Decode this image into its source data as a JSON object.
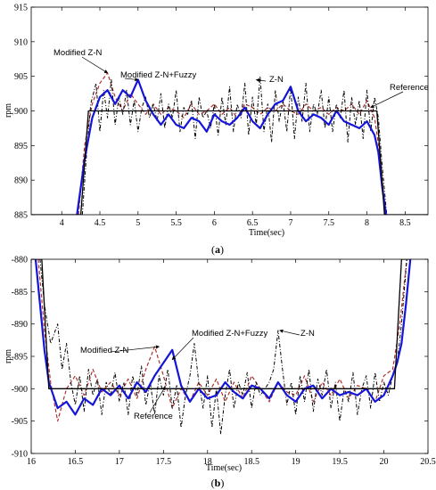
{
  "chart_data": [
    {
      "id": "a",
      "type": "line",
      "panel_label": "a",
      "xlabel": "Time(sec)",
      "ylabel": "rpm",
      "xlim": [
        3.6,
        8.8
      ],
      "ylim": [
        885,
        915
      ],
      "xticks": [
        "4",
        "4.5",
        "5",
        "5.5",
        "6",
        "6.5",
        "7",
        "7.5",
        "8",
        "8.5"
      ],
      "yticks": [
        "885",
        "890",
        "895",
        "900",
        "905",
        "910",
        "915"
      ],
      "series": [
        {
          "name": "Reference",
          "color": "#000000",
          "style": "solid",
          "x": [
            3.6,
            4.25,
            4.35,
            8.13,
            8.23,
            8.8
          ],
          "y": [
            885,
            885,
            900,
            900,
            885,
            885
          ]
        },
        {
          "name": "Modified Z-N+Fuzzy",
          "color": "#1515d8",
          "style": "solid",
          "x": [
            4.2,
            4.3,
            4.4,
            4.5,
            4.6,
            4.7,
            4.8,
            4.9,
            5.0,
            5.1,
            5.2,
            5.3,
            5.4,
            5.5,
            5.6,
            5.7,
            5.8,
            5.9,
            6.0,
            6.1,
            6.2,
            6.3,
            6.4,
            6.5,
            6.6,
            6.7,
            6.8,
            6.9,
            7.0,
            7.1,
            7.2,
            7.3,
            7.4,
            7.5,
            7.6,
            7.7,
            7.8,
            7.9,
            8.0,
            8.1,
            8.15,
            8.2,
            8.25
          ],
          "y": [
            885,
            893,
            899,
            902,
            903,
            901,
            903,
            902,
            904.5,
            901.5,
            899.5,
            898,
            899.5,
            898,
            897.5,
            899,
            898.5,
            897,
            899.5,
            898.5,
            898,
            899,
            900.5,
            898.5,
            897.5,
            899.5,
            901,
            901.5,
            903.5,
            900,
            898.5,
            899.5,
            899,
            898,
            900,
            898.5,
            898,
            897.5,
            898.5,
            896.5,
            894,
            889,
            885
          ]
        },
        {
          "name": "Modified Z-N",
          "color": "#b03030",
          "style": "dashed",
          "x": [
            4.22,
            4.3,
            4.4,
            4.5,
            4.6,
            4.7,
            4.8,
            4.9,
            5.0,
            5.1,
            5.2,
            5.3,
            5.4,
            5.5,
            5.6,
            5.7,
            5.8,
            5.9,
            6.0,
            6.1,
            6.2,
            6.3,
            6.4,
            6.5,
            6.6,
            6.7,
            6.8,
            6.9,
            7.0,
            7.1,
            7.2,
            7.3,
            7.4,
            7.5,
            7.6,
            7.7,
            7.8,
            7.9,
            8.0,
            8.1,
            8.18,
            8.24
          ],
          "y": [
            885,
            895,
            901,
            904,
            905.5,
            902,
            900,
            902.5,
            901,
            899.5,
            901,
            899.5,
            900.5,
            900,
            899,
            901,
            899.5,
            900,
            901,
            899.5,
            900.5,
            899,
            901,
            900.5,
            899.5,
            900.5,
            900,
            901,
            900,
            899.5,
            901,
            900,
            900.5,
            899.5,
            900.5,
            900,
            901,
            899.5,
            901.5,
            899,
            893,
            885
          ]
        },
        {
          "name": "Z-N",
          "color": "#000000",
          "style": "dashdot",
          "x": [
            4.27,
            4.32,
            4.38,
            4.45,
            4.5,
            4.55,
            4.6,
            4.65,
            4.7,
            4.75,
            4.8,
            4.85,
            4.9,
            4.95,
            5.0,
            5.05,
            5.1,
            5.15,
            5.2,
            5.25,
            5.3,
            5.35,
            5.4,
            5.45,
            5.5,
            5.55,
            5.6,
            5.65,
            5.7,
            5.75,
            5.8,
            5.85,
            5.9,
            5.95,
            6.0,
            6.05,
            6.1,
            6.15,
            6.2,
            6.25,
            6.3,
            6.35,
            6.4,
            6.45,
            6.5,
            6.55,
            6.6,
            6.65,
            6.7,
            6.75,
            6.8,
            6.85,
            6.9,
            6.95,
            7.0,
            7.05,
            7.1,
            7.15,
            7.2,
            7.25,
            7.3,
            7.35,
            7.4,
            7.45,
            7.5,
            7.55,
            7.6,
            7.65,
            7.7,
            7.75,
            7.8,
            7.85,
            7.9,
            7.95,
            8.0,
            8.05,
            8.1,
            8.15,
            8.2,
            8.26
          ],
          "y": [
            885,
            893,
            901,
            904,
            897,
            903,
            899,
            904.5,
            898,
            902,
            899.5,
            903,
            898,
            901.5,
            897,
            900.5,
            902,
            899,
            901,
            898.5,
            902.5,
            897.5,
            901,
            899,
            903,
            897,
            900.5,
            899.5,
            901.5,
            896,
            902,
            899,
            900,
            897.5,
            901,
            896.5,
            902,
            898,
            903.5,
            897,
            901,
            899,
            904,
            896.5,
            902,
            898,
            905,
            897,
            901,
            895.5,
            903,
            898.5,
            901.5,
            897,
            903.5,
            896,
            902,
            898.5,
            904,
            897,
            901,
            899.5,
            903,
            897.5,
            902,
            897,
            901,
            899,
            903,
            895.5,
            902,
            898,
            901.5,
            896,
            903,
            897,
            902,
            899,
            892,
            885
          ]
        }
      ],
      "annotations": [
        {
          "text": "Modified  Z-N",
          "target": [
            4.6,
            905.5
          ]
        },
        {
          "text": "Modified  Z-N+Fuzzy",
          "target": [
            5.0,
            904.5
          ]
        },
        {
          "text": "Z-N",
          "target": [
            6.55,
            904.5
          ]
        },
        {
          "text": "Reference",
          "target": [
            8.05,
            900.5
          ]
        }
      ]
    },
    {
      "id": "b",
      "type": "line",
      "panel_label": "b",
      "xlabel": "Time(sec)",
      "ylabel": "rpm",
      "xlim": [
        16,
        20.5
      ],
      "ylim": [
        -910,
        -880
      ],
      "xticks": [
        "16",
        "16.5",
        "17",
        "17.5",
        "18",
        "18.5",
        "19",
        "19.5",
        "20",
        "20.5"
      ],
      "yticks": [
        "-910",
        "-905",
        "-900",
        "-895",
        "-890",
        "-885",
        "-880"
      ],
      "series": [
        {
          "name": "Reference",
          "color": "#000000",
          "style": "solid",
          "x": [
            16.0,
            16.12,
            16.2,
            20.12,
            20.2,
            20.3
          ],
          "y": [
            -880,
            -880,
            -900,
            -900,
            -880,
            -880
          ]
        },
        {
          "name": "Modified Z-N+Fuzzy",
          "color": "#1515d8",
          "style": "solid",
          "x": [
            16.05,
            16.1,
            16.15,
            16.2,
            16.3,
            16.4,
            16.5,
            16.6,
            16.7,
            16.8,
            16.9,
            17.0,
            17.1,
            17.2,
            17.3,
            17.4,
            17.5,
            17.6,
            17.7,
            17.8,
            17.9,
            18.0,
            18.1,
            18.2,
            18.3,
            18.4,
            18.5,
            18.6,
            18.7,
            18.8,
            18.9,
            19.0,
            19.1,
            19.2,
            19.3,
            19.4,
            19.5,
            19.6,
            19.7,
            19.8,
            19.9,
            20.0,
            20.1,
            20.15,
            20.2,
            20.25,
            20.3
          ],
          "y": [
            -880,
            -887,
            -894,
            -899,
            -903,
            -902,
            -904,
            -901.5,
            -902.5,
            -900,
            -901,
            -899.5,
            -901.5,
            -899,
            -900.5,
            -898,
            -896,
            -894,
            -899.5,
            -902,
            -900,
            -901.5,
            -901,
            -899,
            -900.5,
            -901.5,
            -899.5,
            -900,
            -901.5,
            -899,
            -901,
            -902,
            -900,
            -899.5,
            -901.5,
            -900,
            -901,
            -900.5,
            -901,
            -900,
            -902,
            -901,
            -898,
            -896,
            -893,
            -887,
            -880
          ]
        },
        {
          "name": "Modified Z-N",
          "color": "#b03030",
          "style": "dashed",
          "x": [
            16.08,
            16.15,
            16.22,
            16.3,
            16.4,
            16.5,
            16.6,
            16.7,
            16.8,
            16.9,
            17.0,
            17.1,
            17.2,
            17.3,
            17.4,
            17.5,
            17.6,
            17.7,
            17.8,
            17.9,
            18.0,
            18.1,
            18.2,
            18.3,
            18.4,
            18.5,
            18.6,
            18.7,
            18.8,
            18.9,
            19.0,
            19.1,
            19.2,
            19.3,
            19.4,
            19.5,
            19.6,
            19.7,
            19.8,
            19.9,
            20.0,
            20.1,
            20.18,
            20.26
          ],
          "y": [
            -880,
            -891,
            -899,
            -905,
            -900,
            -898,
            -901,
            -897,
            -900.5,
            -899,
            -901,
            -898.5,
            -901.5,
            -897,
            -893.5,
            -898,
            -903,
            -900,
            -902,
            -899,
            -901,
            -898.5,
            -902,
            -899,
            -901.5,
            -898,
            -900,
            -902,
            -899,
            -900.5,
            -901,
            -898,
            -902,
            -899,
            -901,
            -898.5,
            -901.5,
            -899.5,
            -900,
            -902,
            -898,
            -897,
            -890,
            -880
          ]
        },
        {
          "name": "Z-N",
          "color": "#000000",
          "style": "dashdot",
          "x": [
            16.1,
            16.15,
            16.22,
            16.3,
            16.35,
            16.4,
            16.45,
            16.5,
            16.55,
            16.6,
            16.65,
            16.7,
            16.75,
            16.8,
            16.85,
            16.9,
            16.95,
            17.0,
            17.05,
            17.1,
            17.15,
            17.2,
            17.25,
            17.3,
            17.35,
            17.4,
            17.45,
            17.5,
            17.55,
            17.6,
            17.65,
            17.7,
            17.75,
            17.8,
            17.85,
            17.9,
            17.95,
            18.0,
            18.05,
            18.1,
            18.15,
            18.2,
            18.25,
            18.3,
            18.35,
            18.4,
            18.45,
            18.5,
            18.55,
            18.6,
            18.65,
            18.7,
            18.75,
            18.8,
            18.85,
            18.9,
            18.95,
            19.0,
            19.05,
            19.1,
            19.15,
            19.2,
            19.25,
            19.3,
            19.35,
            19.4,
            19.45,
            19.5,
            19.55,
            19.6,
            19.65,
            19.7,
            19.75,
            19.8,
            19.85,
            19.9,
            19.95,
            20.0,
            20.05,
            20.1,
            20.15,
            20.2,
            20.26
          ],
          "y": [
            -880,
            -887,
            -893,
            -890,
            -897,
            -893,
            -899,
            -902.5,
            -898,
            -903.5,
            -897,
            -901,
            -898.5,
            -904,
            -899,
            -901,
            -897.5,
            -902,
            -899,
            -904,
            -898,
            -901,
            -896.5,
            -902.5,
            -899,
            -904,
            -898,
            -901,
            -897,
            -903,
            -899.5,
            -906,
            -901,
            -898,
            -893,
            -899,
            -903,
            -898,
            -906,
            -900,
            -907,
            -901,
            -897,
            -903,
            -899,
            -901,
            -897.5,
            -903,
            -899,
            -901,
            -900,
            -899,
            -897,
            -891,
            -897,
            -902.5,
            -899,
            -904,
            -898,
            -902,
            -897,
            -903.5,
            -898.5,
            -901,
            -897,
            -903,
            -899,
            -905,
            -900,
            -902,
            -897.5,
            -904,
            -900,
            -898,
            -903,
            -897.5,
            -902,
            -899,
            -901,
            -898,
            -896,
            -890,
            -880
          ]
        }
      ],
      "annotations": [
        {
          "text": "Modified  Z-N",
          "target": [
            17.45,
            -893.5
          ]
        },
        {
          "text": "Modified  Z-N+Fuzzy",
          "target": [
            17.6,
            -895.5
          ]
        },
        {
          "text": "Z-N",
          "target": [
            18.82,
            -891
          ]
        },
        {
          "text": "Reference",
          "target": [
            17.52,
            -899.7
          ]
        }
      ]
    }
  ]
}
